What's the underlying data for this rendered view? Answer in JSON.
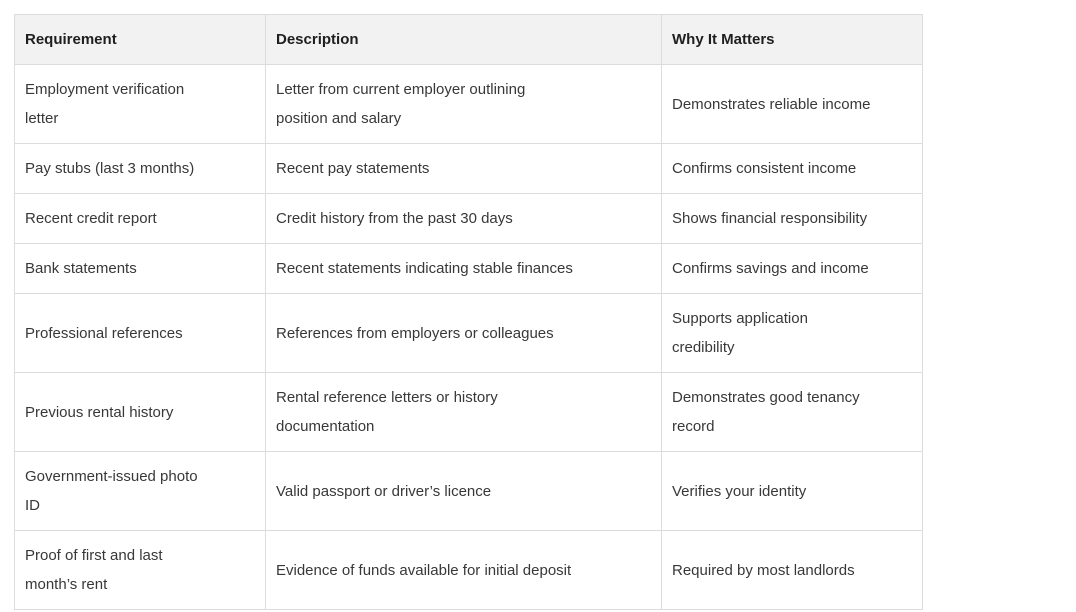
{
  "colors": {
    "page_bg": "#ffffff",
    "header_bg": "#f2f2f2",
    "border": "#dcdcdc",
    "header_text": "#1f1f1f",
    "body_text": "#383838"
  },
  "table": {
    "columns": [
      {
        "id": "requirement",
        "label": "Requirement"
      },
      {
        "id": "description",
        "label": "Description"
      },
      {
        "id": "why",
        "label": "Why It Matters"
      }
    ],
    "rows": [
      {
        "requirement": "Employment verification\nletter",
        "description": "Letter from current employer outlining\nposition and salary",
        "why": "Demonstrates reliable income"
      },
      {
        "requirement": "Pay stubs (last 3 months)",
        "description": "Recent pay statements",
        "why": "Confirms consistent income"
      },
      {
        "requirement": "Recent credit report",
        "description": "Credit history from the past 30 days",
        "why": "Shows financial responsibility"
      },
      {
        "requirement": "Bank statements",
        "description": "Recent statements indicating stable finances",
        "why": "Confirms savings and income"
      },
      {
        "requirement": "Professional references",
        "description": "References from employers or colleagues",
        "why": "Supports application\ncredibility"
      },
      {
        "requirement": "Previous rental history",
        "description": "Rental reference letters or history\ndocumentation",
        "why": "Demonstrates good tenancy\nrecord"
      },
      {
        "requirement": "Government-issued photo\nID",
        "description": "Valid passport or driver’s licence",
        "why": "Verifies your identity"
      },
      {
        "requirement": "Proof of first and last\nmonth’s rent",
        "description": "Evidence of funds available for initial deposit",
        "why": "Required by most landlords"
      }
    ]
  }
}
